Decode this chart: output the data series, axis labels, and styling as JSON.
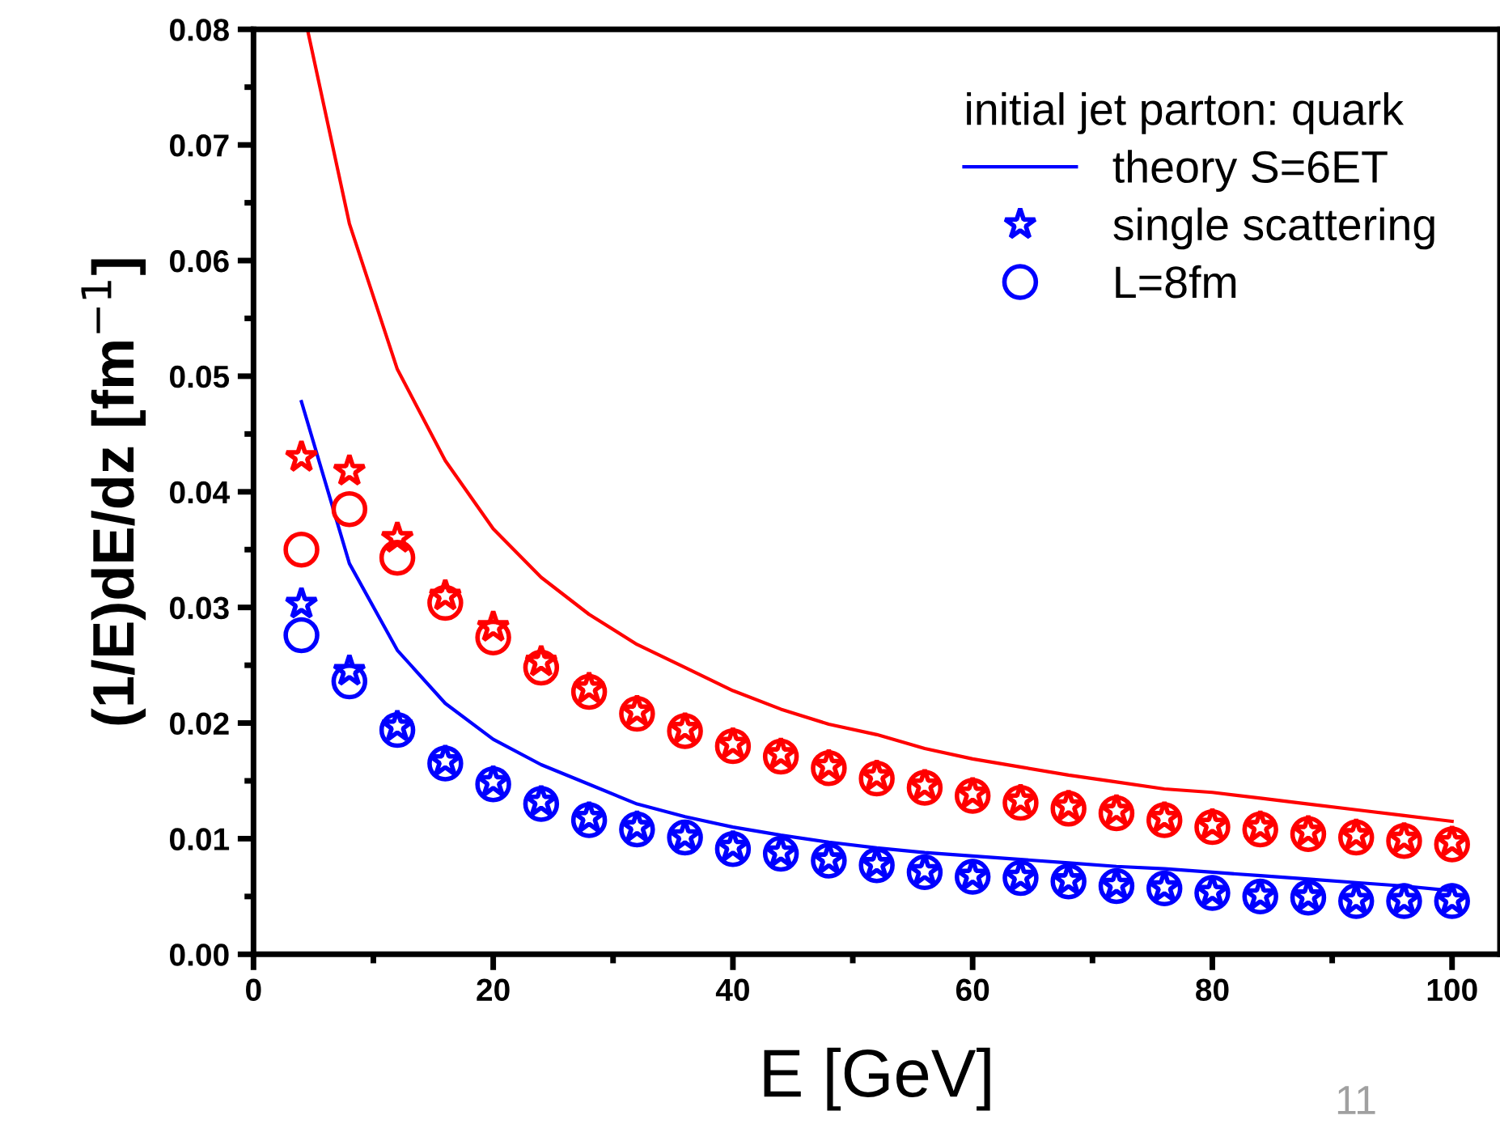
{
  "chart_data": {
    "type": "scatter",
    "xlabel": "E [GeV]",
    "ylabel": "(1/E)dE/dz [fm$^{−1}$]",
    "legend_title": "initial jet parton: quark",
    "legend": "top right",
    "grid": false,
    "xlim": [
      0,
      104
    ],
    "ylim": [
      0,
      0.08
    ],
    "xticks": [
      0,
      {
        "value": 10,
        "label": null
      },
      20,
      {
        "value": 30,
        "label": null
      },
      40,
      {
        "value": 50,
        "label": null
      },
      60,
      {
        "value": 70,
        "label": null
      },
      80,
      {
        "value": 90,
        "label": null
      },
      100
    ],
    "yticks": [
      {
        "value": 0,
        "label": "0.00"
      },
      {
        "value": 0.005,
        "label": null
      },
      0.01,
      {
        "value": 0.015,
        "label": null
      },
      0.02,
      {
        "value": 0.025,
        "label": null
      },
      0.03,
      {
        "value": 0.035,
        "label": null
      },
      0.04,
      {
        "value": 0.045,
        "label": null
      },
      0.05,
      {
        "value": 0.055,
        "label": null
      },
      0.06,
      {
        "value": 0.065,
        "label": null
      },
      0.07,
      {
        "value": 0.075,
        "label": null
      },
      0.08
    ],
    "x": [
      4,
      8,
      12,
      16,
      20,
      24,
      28,
      32,
      36,
      40,
      44,
      48,
      52,
      56,
      60,
      64,
      68,
      72,
      76,
      80,
      84,
      88,
      92,
      96,
      100
    ],
    "annotations": [
      "11"
    ],
    "series": [
      {
        "name": "theory S=6ET",
        "type": "line",
        "color": "#0000ff",
        "marker": "none",
        "line_style": "solid",
        "values": [
          0.0478,
          0.0338,
          0.0263,
          0.0217,
          0.0186,
          0.0164,
          0.0147,
          0.013,
          0.0119,
          0.011,
          0.0103,
          0.0097,
          0.0092,
          0.0088,
          0.0085,
          0.0082,
          0.0079,
          0.0076,
          0.0074,
          0.0071,
          0.0068,
          0.0065,
          0.0062,
          0.0059,
          0.0055
        ]
      },
      {
        "name": "single scattering",
        "color": "#0000ff",
        "marker": "star",
        "values": [
          0.0303,
          0.0245,
          0.0197,
          0.0167,
          0.0149,
          0.0132,
          0.0118,
          0.011,
          0.0102,
          0.0093,
          0.0088,
          0.0082,
          0.0078,
          0.0072,
          0.0068,
          0.0067,
          0.0064,
          0.006,
          0.0058,
          0.0054,
          0.0051,
          0.005,
          0.0047,
          0.0047,
          0.0047
        ]
      },
      {
        "name": "L=8fm",
        "color": "#0000ff",
        "marker": "circle",
        "values": [
          0.0276,
          0.0236,
          0.0194,
          0.0165,
          0.0147,
          0.013,
          0.0116,
          0.0108,
          0.0101,
          0.0091,
          0.0087,
          0.0081,
          0.0077,
          0.0071,
          0.0067,
          0.0066,
          0.0063,
          0.0059,
          0.0057,
          0.0053,
          0.005,
          0.0049,
          0.0046,
          0.0046,
          0.0046
        ]
      },
      {
        "type": "line",
        "color": "#ff0000",
        "marker": "none",
        "line_style": "solid",
        "x": [
          4.5,
          8,
          12,
          16,
          20,
          24,
          28,
          32,
          36,
          40,
          44,
          48,
          52,
          56,
          60,
          64,
          68,
          72,
          76,
          80,
          84,
          88,
          92,
          96,
          100
        ],
        "values": [
          0.08,
          0.0632,
          0.0506,
          0.0427,
          0.0368,
          0.0326,
          0.0294,
          0.0268,
          0.0248,
          0.0228,
          0.0212,
          0.0199,
          0.019,
          0.0178,
          0.0169,
          0.0162,
          0.0155,
          0.0149,
          0.0143,
          0.014,
          0.0135,
          0.013,
          0.0125,
          0.012,
          0.0115
        ]
      },
      {
        "color": "#ff0000",
        "marker": "star",
        "values": [
          0.043,
          0.0418,
          0.036,
          0.031,
          0.0283,
          0.0253,
          0.023,
          0.021,
          0.0195,
          0.0182,
          0.0173,
          0.0163,
          0.0154,
          0.0146,
          0.0139,
          0.0133,
          0.0128,
          0.0124,
          0.0118,
          0.0112,
          0.011,
          0.0106,
          0.0103,
          0.01,
          0.0097
        ]
      },
      {
        "color": "#ff0000",
        "marker": "circle",
        "values": [
          0.035,
          0.0385,
          0.0343,
          0.0304,
          0.0274,
          0.0248,
          0.0227,
          0.0208,
          0.0193,
          0.018,
          0.0171,
          0.0161,
          0.0152,
          0.0144,
          0.0137,
          0.0131,
          0.0126,
          0.0122,
          0.0116,
          0.011,
          0.0108,
          0.0104,
          0.0101,
          0.0098,
          0.0095
        ]
      }
    ]
  }
}
